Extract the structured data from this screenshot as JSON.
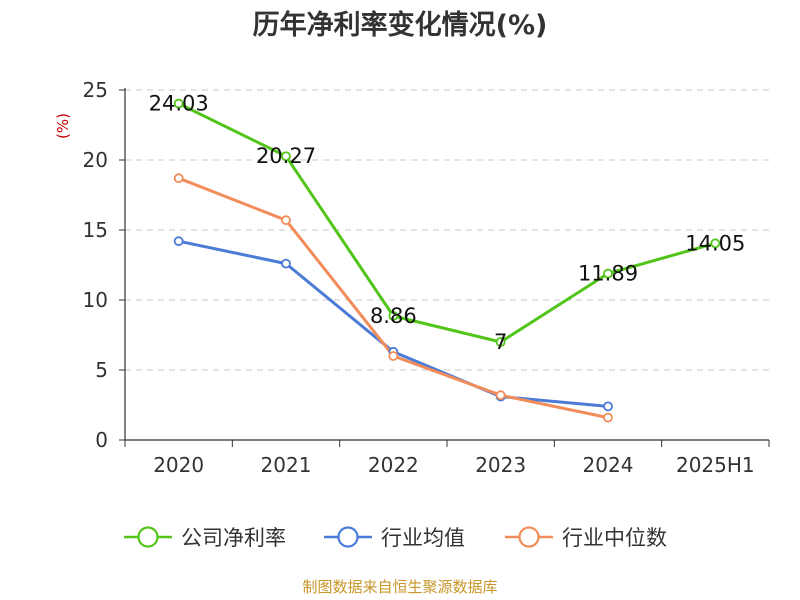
{
  "chart_data": {
    "type": "line",
    "title": "历年净利率变化情况(%)",
    "ylabel": "(%)",
    "xlabel": "",
    "categories": [
      "2020",
      "2021",
      "2022",
      "2023",
      "2024",
      "2025H1"
    ],
    "ylim": [
      0,
      25
    ],
    "yticks": [
      0,
      5,
      10,
      15,
      20,
      25
    ],
    "grid": true,
    "legend_position": "bottom",
    "series": [
      {
        "name": "公司净利率",
        "color": "#52c41a",
        "values": [
          24.03,
          20.27,
          8.86,
          7,
          11.89,
          14.05
        ],
        "labels": [
          "24.03",
          "20.27",
          "8.86",
          "7",
          "11.89",
          "14.05"
        ]
      },
      {
        "name": "行业均值",
        "color": "#4a7bd6",
        "values": [
          14.2,
          12.6,
          6.3,
          3.1,
          2.4,
          null
        ]
      },
      {
        "name": "行业中位数",
        "color": "#f28c5a",
        "values": [
          18.7,
          15.7,
          6.0,
          3.2,
          1.6,
          null
        ]
      }
    ]
  },
  "source": "制图数据来自恒生聚源数据库"
}
